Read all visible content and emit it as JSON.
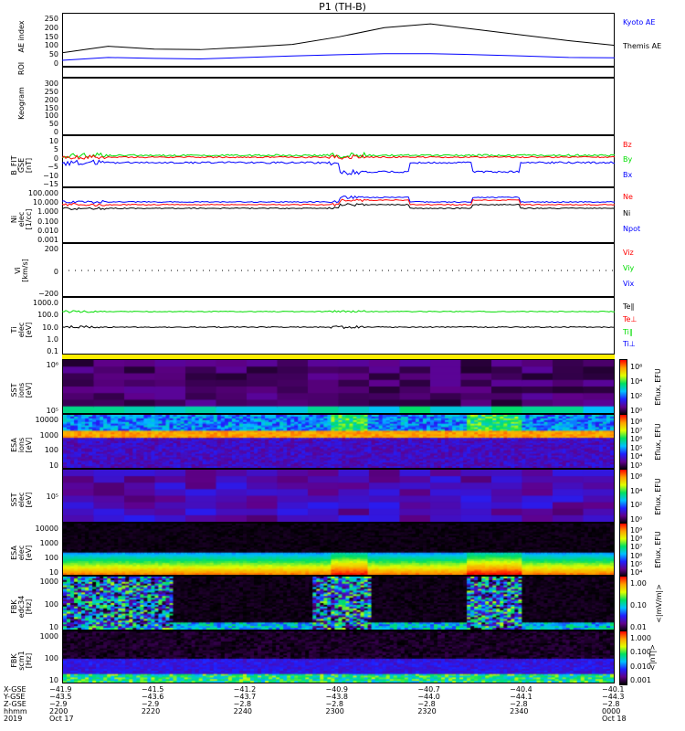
{
  "title": "P1 (TH-B)",
  "panels": {
    "ae": {
      "label": "AE index",
      "ticks": [
        "250",
        "200",
        "150",
        "100",
        "50",
        "0"
      ],
      "legend": [
        "Kyoto AE",
        "Themis AE"
      ],
      "legend_colors": [
        "#0000ff",
        "#000000"
      ]
    },
    "roi": {
      "label": "ROI"
    },
    "keogram": {
      "label": "Keogram",
      "ticks": [
        "300",
        "250",
        "200",
        "150",
        "100",
        "50",
        "0"
      ]
    },
    "bfit": {
      "label": "B_FIT",
      "sub": "GSE",
      "unit": "[nT]",
      "ticks": [
        "10",
        "5",
        "0",
        "−5",
        "−10",
        "−15"
      ],
      "legend": [
        "Bz",
        "By",
        "Bx"
      ],
      "legend_colors": [
        "#ff0000",
        "#00dd00",
        "#0000ff"
      ]
    },
    "ni": {
      "label": "Ni",
      "sub": "elec",
      "unit": "[1/cc]",
      "ticks": [
        "100.000",
        "10.000",
        "1.000",
        "0.100",
        "0.010",
        "0.001"
      ],
      "legend": [
        "Ne",
        "Ni",
        "Npot"
      ],
      "legend_colors": [
        "#ff0000",
        "#000000",
        "#0000ff"
      ]
    },
    "vi": {
      "label": "Vi",
      "unit": "[km/s]",
      "ticks": [
        "200",
        "0",
        "−200"
      ],
      "legend": [
        "Viz",
        "Viy",
        "Vix"
      ],
      "legend_colors": [
        "#ff0000",
        "#00dd00",
        "#0000ff"
      ]
    },
    "ti": {
      "label": "Ti",
      "sub": "elec",
      "unit": "[eV]",
      "ticks": [
        "1000.0",
        "100.0",
        "10.0",
        "1.0",
        "0.1"
      ],
      "legend": [
        "Te∥",
        "Te⊥",
        "Ti∥",
        "Ti⊥"
      ],
      "legend_colors": [
        "#000000",
        "#ff0000",
        "#00dd00",
        "#0000ff"
      ]
    },
    "sst_i": {
      "label": "SST",
      "sub": "ions",
      "unit": "[eV]",
      "ticks": [
        "10⁶",
        "10⁵"
      ],
      "cb_ticks": [
        "10⁶",
        "10⁴",
        "10²",
        "10⁰"
      ],
      "cb_title": "Eflux, EFU"
    },
    "esa_i": {
      "label": "ESA",
      "sub": "ions",
      "unit": "[eV]",
      "ticks": [
        "10000",
        "1000",
        "100",
        "10"
      ],
      "cb_ticks": [
        "10⁸",
        "10⁷",
        "10⁶",
        "10⁵",
        "10⁴",
        "10³"
      ],
      "cb_title": "Eflux, EFU"
    },
    "sst_e": {
      "label": "SST",
      "sub": "elec",
      "unit": "[eV]",
      "ticks": [
        "10⁵"
      ],
      "cb_ticks": [
        "10⁶",
        "10⁴",
        "10²",
        "10⁰"
      ],
      "cb_title": "Eflux, EFU"
    },
    "esa_e": {
      "label": "ESA",
      "sub": "elec",
      "unit": "[eV]",
      "ticks": [
        "10000",
        "1000",
        "100",
        "10"
      ],
      "cb_ticks": [
        "10⁹",
        "10⁸",
        "10⁷",
        "10⁶",
        "10⁵",
        "10⁴"
      ],
      "cb_title": "Eflux, EFU"
    },
    "fbk_e": {
      "label": "FBK",
      "sub": "edc34",
      "unit": "[Hz]",
      "ticks": [
        "1000",
        "100",
        "10"
      ],
      "cb_ticks": [
        "1.00",
        "0.10",
        "0.01"
      ],
      "cb_title": "<|mV/m|>"
    },
    "fbk_b": {
      "label": "FBK",
      "sub": "scm1",
      "unit": "[Hz]",
      "ticks": [
        "1000",
        "100",
        "10"
      ],
      "cb_ticks": [
        "1.000",
        "0.100",
        "0.010",
        "0.001"
      ],
      "cb_title": "<|nT|>"
    }
  },
  "xaxis": {
    "row_labels": [
      "X-GSE",
      "Y-GSE",
      "Z-GSE",
      "hhmm",
      "2019"
    ],
    "cols": [
      [
        "−41.9",
        "−43.5",
        "−2.9",
        "2200",
        "Oct 17"
      ],
      [
        "−41.5",
        "−43.6",
        "−2.9",
        "2220",
        ""
      ],
      [
        "−41.2",
        "−43.7",
        "−2.8",
        "2240",
        ""
      ],
      [
        "−40.9",
        "−43.8",
        "−2.8",
        "2300",
        ""
      ],
      [
        "−40.7",
        "−44.0",
        "−2.8",
        "2320",
        ""
      ],
      [
        "−40.4",
        "−44.1",
        "−2.8",
        "2340",
        ""
      ],
      [
        "−40.1",
        "−44.3",
        "−2.8",
        "0000",
        "Oct 18"
      ]
    ]
  },
  "chart_data": {
    "type": "line",
    "title": "P1 (TH-B)",
    "xlabel": "hhmm",
    "x_minutes": [
      0,
      10,
      20,
      30,
      40,
      50,
      60,
      70,
      80,
      90,
      100,
      110,
      120
    ],
    "series": [
      {
        "name": "Themis AE",
        "color": "#000000",
        "values": [
          55,
          90,
          75,
          72,
          85,
          100,
          140,
          190,
          210,
          180,
          150,
          120,
          95
        ]
      },
      {
        "name": "Kyoto AE",
        "color": "#0000ff",
        "values": [
          15,
          30,
          25,
          22,
          30,
          38,
          45,
          50,
          50,
          45,
          38,
          30,
          28
        ]
      }
    ],
    "ylim": [
      0,
      250
    ]
  }
}
